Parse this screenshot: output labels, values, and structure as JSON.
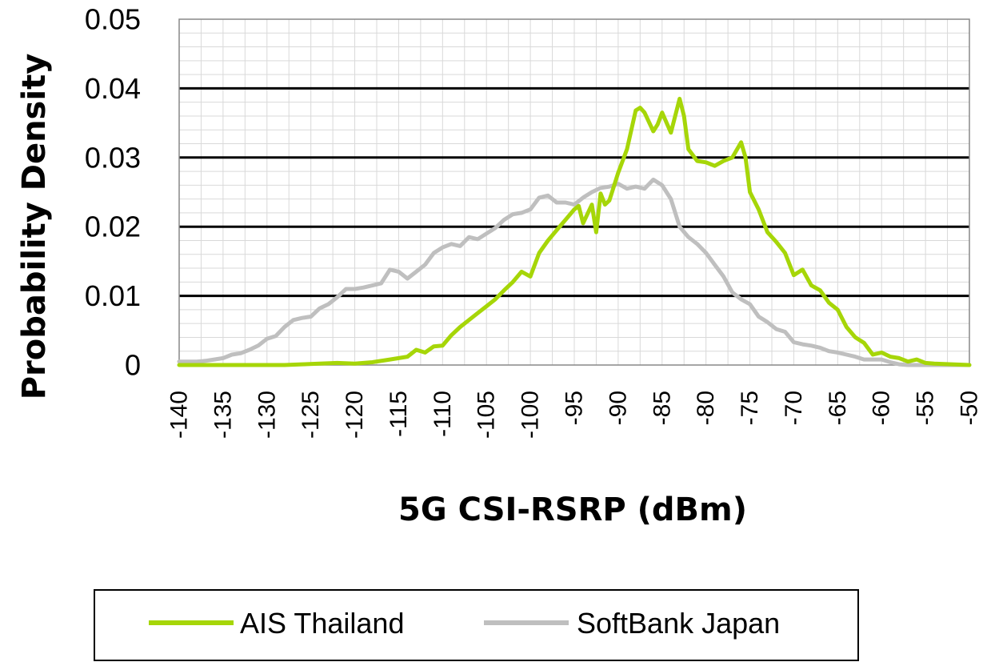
{
  "chart_data": {
    "type": "line",
    "xlabel": "5G CSI-RSRP (dBm)",
    "ylabel": "Probability Density",
    "xlim": [
      -140,
      -50
    ],
    "ylim": [
      0,
      0.05
    ],
    "x_ticks": [
      -140,
      -135,
      -130,
      -125,
      -120,
      -115,
      -110,
      -105,
      -100,
      -95,
      -90,
      -85,
      -80,
      -75,
      -70,
      -65,
      -60,
      -55,
      -50
    ],
    "y_ticks": [
      0,
      0.01,
      0.02,
      0.03,
      0.04,
      0.05
    ],
    "y_tick_labels": [
      "0",
      "0.01",
      "0.02",
      "0.03",
      "0.04",
      "0.05"
    ],
    "grid": {
      "major_y": true,
      "minor_x": true,
      "minor_y": true
    },
    "legend_position": "bottom",
    "series": [
      {
        "name": "AIS Thailand",
        "color": "#a6d608",
        "x": [
          -140,
          -138,
          -136,
          -134,
          -132,
          -130,
          -128,
          -126,
          -124,
          -122,
          -120,
          -118,
          -116,
          -114,
          -113,
          -112,
          -111,
          -110,
          -109,
          -108,
          -107,
          -106,
          -105,
          -104,
          -103,
          -102,
          -101,
          -100,
          -99,
          -98,
          -97,
          -96,
          -95,
          -94.5,
          -94,
          -93,
          -92.5,
          -92,
          -91.5,
          -91,
          -90,
          -89,
          -88,
          -87.5,
          -87,
          -86,
          -85.5,
          -85,
          -84,
          -83,
          -82.5,
          -82,
          -81,
          -80,
          -79,
          -78,
          -77,
          -76,
          -75.5,
          -75,
          -74,
          -73,
          -72,
          -71,
          -70,
          -69,
          -68,
          -67,
          -66,
          -65,
          -64,
          -63,
          -62,
          -61,
          -60,
          -59,
          -58,
          -57,
          -56,
          -55,
          -54,
          -52,
          -50
        ],
        "y": [
          0,
          0,
          0,
          0,
          0,
          0,
          0,
          0.0001,
          0.0002,
          0.0003,
          0.0002,
          0.0004,
          0.0008,
          0.0012,
          0.0022,
          0.0018,
          0.0027,
          0.0028,
          0.0043,
          0.0055,
          0.0065,
          0.0075,
          0.0085,
          0.0095,
          0.0108,
          0.012,
          0.0135,
          0.0128,
          0.0162,
          0.018,
          0.0195,
          0.021,
          0.0225,
          0.023,
          0.0205,
          0.0232,
          0.0192,
          0.0248,
          0.0232,
          0.0238,
          0.0278,
          0.0312,
          0.0368,
          0.0372,
          0.0365,
          0.0338,
          0.0348,
          0.0365,
          0.0336,
          0.0385,
          0.036,
          0.0312,
          0.0295,
          0.0293,
          0.0288,
          0.0295,
          0.03,
          0.0322,
          0.03,
          0.025,
          0.0225,
          0.0192,
          0.0178,
          0.0162,
          0.013,
          0.0138,
          0.0115,
          0.0108,
          0.009,
          0.008,
          0.0055,
          0.004,
          0.0032,
          0.0015,
          0.0018,
          0.0012,
          0.001,
          0.0005,
          0.0008,
          0.0003,
          0.0002,
          0.0001,
          0
        ]
      },
      {
        "name": "SoftBank Japan",
        "color": "#bfbfbf",
        "x": [
          -140,
          -139,
          -138,
          -137,
          -136,
          -135,
          -134,
          -133,
          -132,
          -131,
          -130,
          -129,
          -128,
          -127,
          -126,
          -125,
          -124,
          -123,
          -122,
          -121,
          -120,
          -119,
          -118,
          -117,
          -116,
          -115,
          -114,
          -113,
          -112,
          -111,
          -110,
          -109,
          -108,
          -107,
          -106,
          -105,
          -104,
          -103,
          -102,
          -101,
          -100,
          -99,
          -98,
          -97,
          -96,
          -95,
          -94,
          -93,
          -92,
          -91,
          -90,
          -89,
          -88,
          -87,
          -86,
          -85,
          -84,
          -83,
          -82,
          -81,
          -80,
          -79,
          -78,
          -77,
          -76,
          -75,
          -74,
          -73,
          -72,
          -71,
          -70,
          -69,
          -68,
          -67,
          -66,
          -65,
          -64,
          -63,
          -62,
          -61,
          -60,
          -59,
          -58,
          -57,
          -56,
          -55,
          -54,
          -53,
          -52,
          -51,
          -50
        ],
        "y": [
          0.0005,
          0.0005,
          0.0005,
          0.0006,
          0.0008,
          0.001,
          0.0015,
          0.0017,
          0.0022,
          0.0028,
          0.0038,
          0.0042,
          0.0055,
          0.0065,
          0.0068,
          0.007,
          0.0082,
          0.0088,
          0.0098,
          0.011,
          0.011,
          0.0112,
          0.0115,
          0.0118,
          0.0138,
          0.0135,
          0.0125,
          0.0135,
          0.0145,
          0.0162,
          0.017,
          0.0175,
          0.0172,
          0.0185,
          0.0182,
          0.019,
          0.0198,
          0.021,
          0.0218,
          0.022,
          0.0225,
          0.0242,
          0.0245,
          0.0235,
          0.0235,
          0.0232,
          0.0242,
          0.025,
          0.0256,
          0.0258,
          0.0262,
          0.0255,
          0.0258,
          0.0255,
          0.0268,
          0.026,
          0.024,
          0.02,
          0.0185,
          0.0175,
          0.0162,
          0.0145,
          0.0128,
          0.0105,
          0.0095,
          0.0088,
          0.007,
          0.0062,
          0.0052,
          0.0048,
          0.0033,
          0.003,
          0.0028,
          0.0025,
          0.002,
          0.0018,
          0.0015,
          0.0012,
          0.0008,
          0.0008,
          0.0008,
          0.0004,
          0.0001,
          0,
          0,
          0,
          0,
          0,
          0,
          0,
          0
        ]
      }
    ]
  }
}
